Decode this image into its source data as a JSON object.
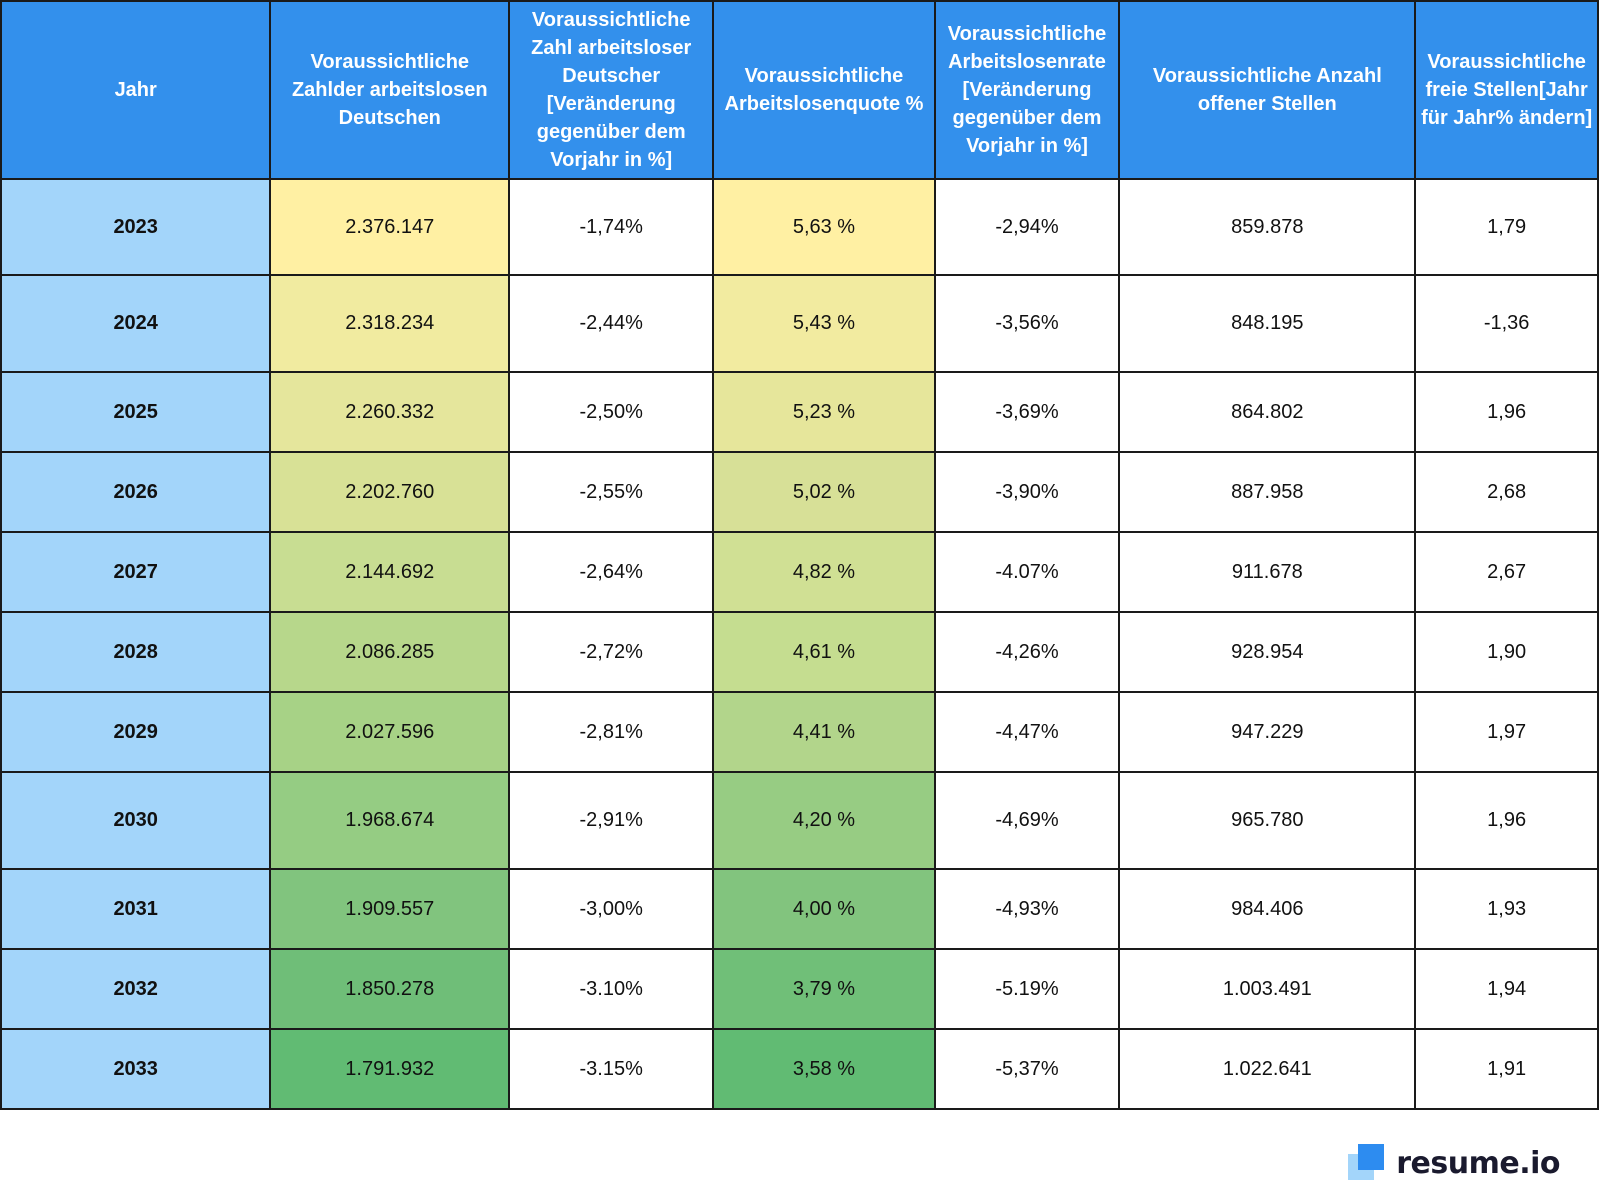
{
  "chart_data": {
    "type": "table",
    "columns": [
      "Jahr",
      "Voraussichtliche Zahlder arbeitslosen Deutschen",
      "Voraussichtliche Zahl arbeitsloser Deutscher [Veränderung gegenüber dem Vorjahr in %]",
      "Voraussichtliche Arbeitslosenquote %",
      "Voraussichtliche Arbeitslosenrate [Veränderung gegenüber dem Vorjahr in %]",
      "Voraussichtliche Anzahl offener Stellen",
      "Voraussichtliche freie Stellen[Jahr für Jahr% ändern]"
    ],
    "rows": [
      [
        "2023",
        "2.376.147",
        "-1,74%",
        "5,63 %",
        "-2,94%",
        "859.878",
        "1,79"
      ],
      [
        "2024",
        "2.318.234",
        "-2,44%",
        "5,43 %",
        "-3,56%",
        "848.195",
        "-1,36"
      ],
      [
        "2025",
        "2.260.332",
        "-2,50%",
        "5,23 %",
        "-3,69%",
        "864.802",
        "1,96"
      ],
      [
        "2026",
        "2.202.760",
        "-2,55%",
        "5,02 %",
        "-3,90%",
        "887.958",
        "2,68"
      ],
      [
        "2027",
        "2.144.692",
        "-2,64%",
        "4,82 %",
        "-4.07%",
        "911.678",
        "2,67"
      ],
      [
        "2028",
        "2.086.285",
        "-2,72%",
        "4,61 %",
        "-4,26%",
        "928.954",
        "1,90"
      ],
      [
        "2029",
        "2.027.596",
        "-2,81%",
        "4,41 %",
        "-4,47%",
        "947.229",
        "1,97"
      ],
      [
        "2030",
        "1.968.674",
        "-2,91%",
        "4,20 %",
        "-4,69%",
        "965.780",
        "1,96"
      ],
      [
        "2031",
        "1.909.557",
        "-3,00%",
        "4,00 %",
        "-4,93%",
        "984.406",
        "1,93"
      ],
      [
        "2032",
        "1.850.278",
        "-3.10%",
        "3,79 %",
        "-5.19%",
        "1.003.491",
        "1,94"
      ],
      [
        "2033",
        "1.791.932",
        "-3.15%",
        "3,58 %",
        "-5,37%",
        "1.022.641",
        "1,91"
      ]
    ],
    "colors": {
      "header_bg": "#3390ec",
      "year_col_bg": "#a3d5fa",
      "col_unemployed_scale": [
        "#fff0a3",
        "#f1eba0",
        "#e5e69c",
        "#d8e196",
        "#c8dd92",
        "#b7d78b",
        "#a7d286",
        "#95cc83",
        "#81c47e",
        "#6fbe78",
        "#61bb73"
      ],
      "col_rate_scale": [
        "#fff0a3",
        "#f2eba0",
        "#e6e69b",
        "#d7e097",
        "#d0e094",
        "#c5dd90",
        "#b2d58b",
        "#97cc83",
        "#82c47e",
        "#70bf78",
        "#61bb73"
      ]
    }
  },
  "brand": {
    "logo_text": "resume.io",
    "logo_icon": "resume-io-logo-icon"
  }
}
